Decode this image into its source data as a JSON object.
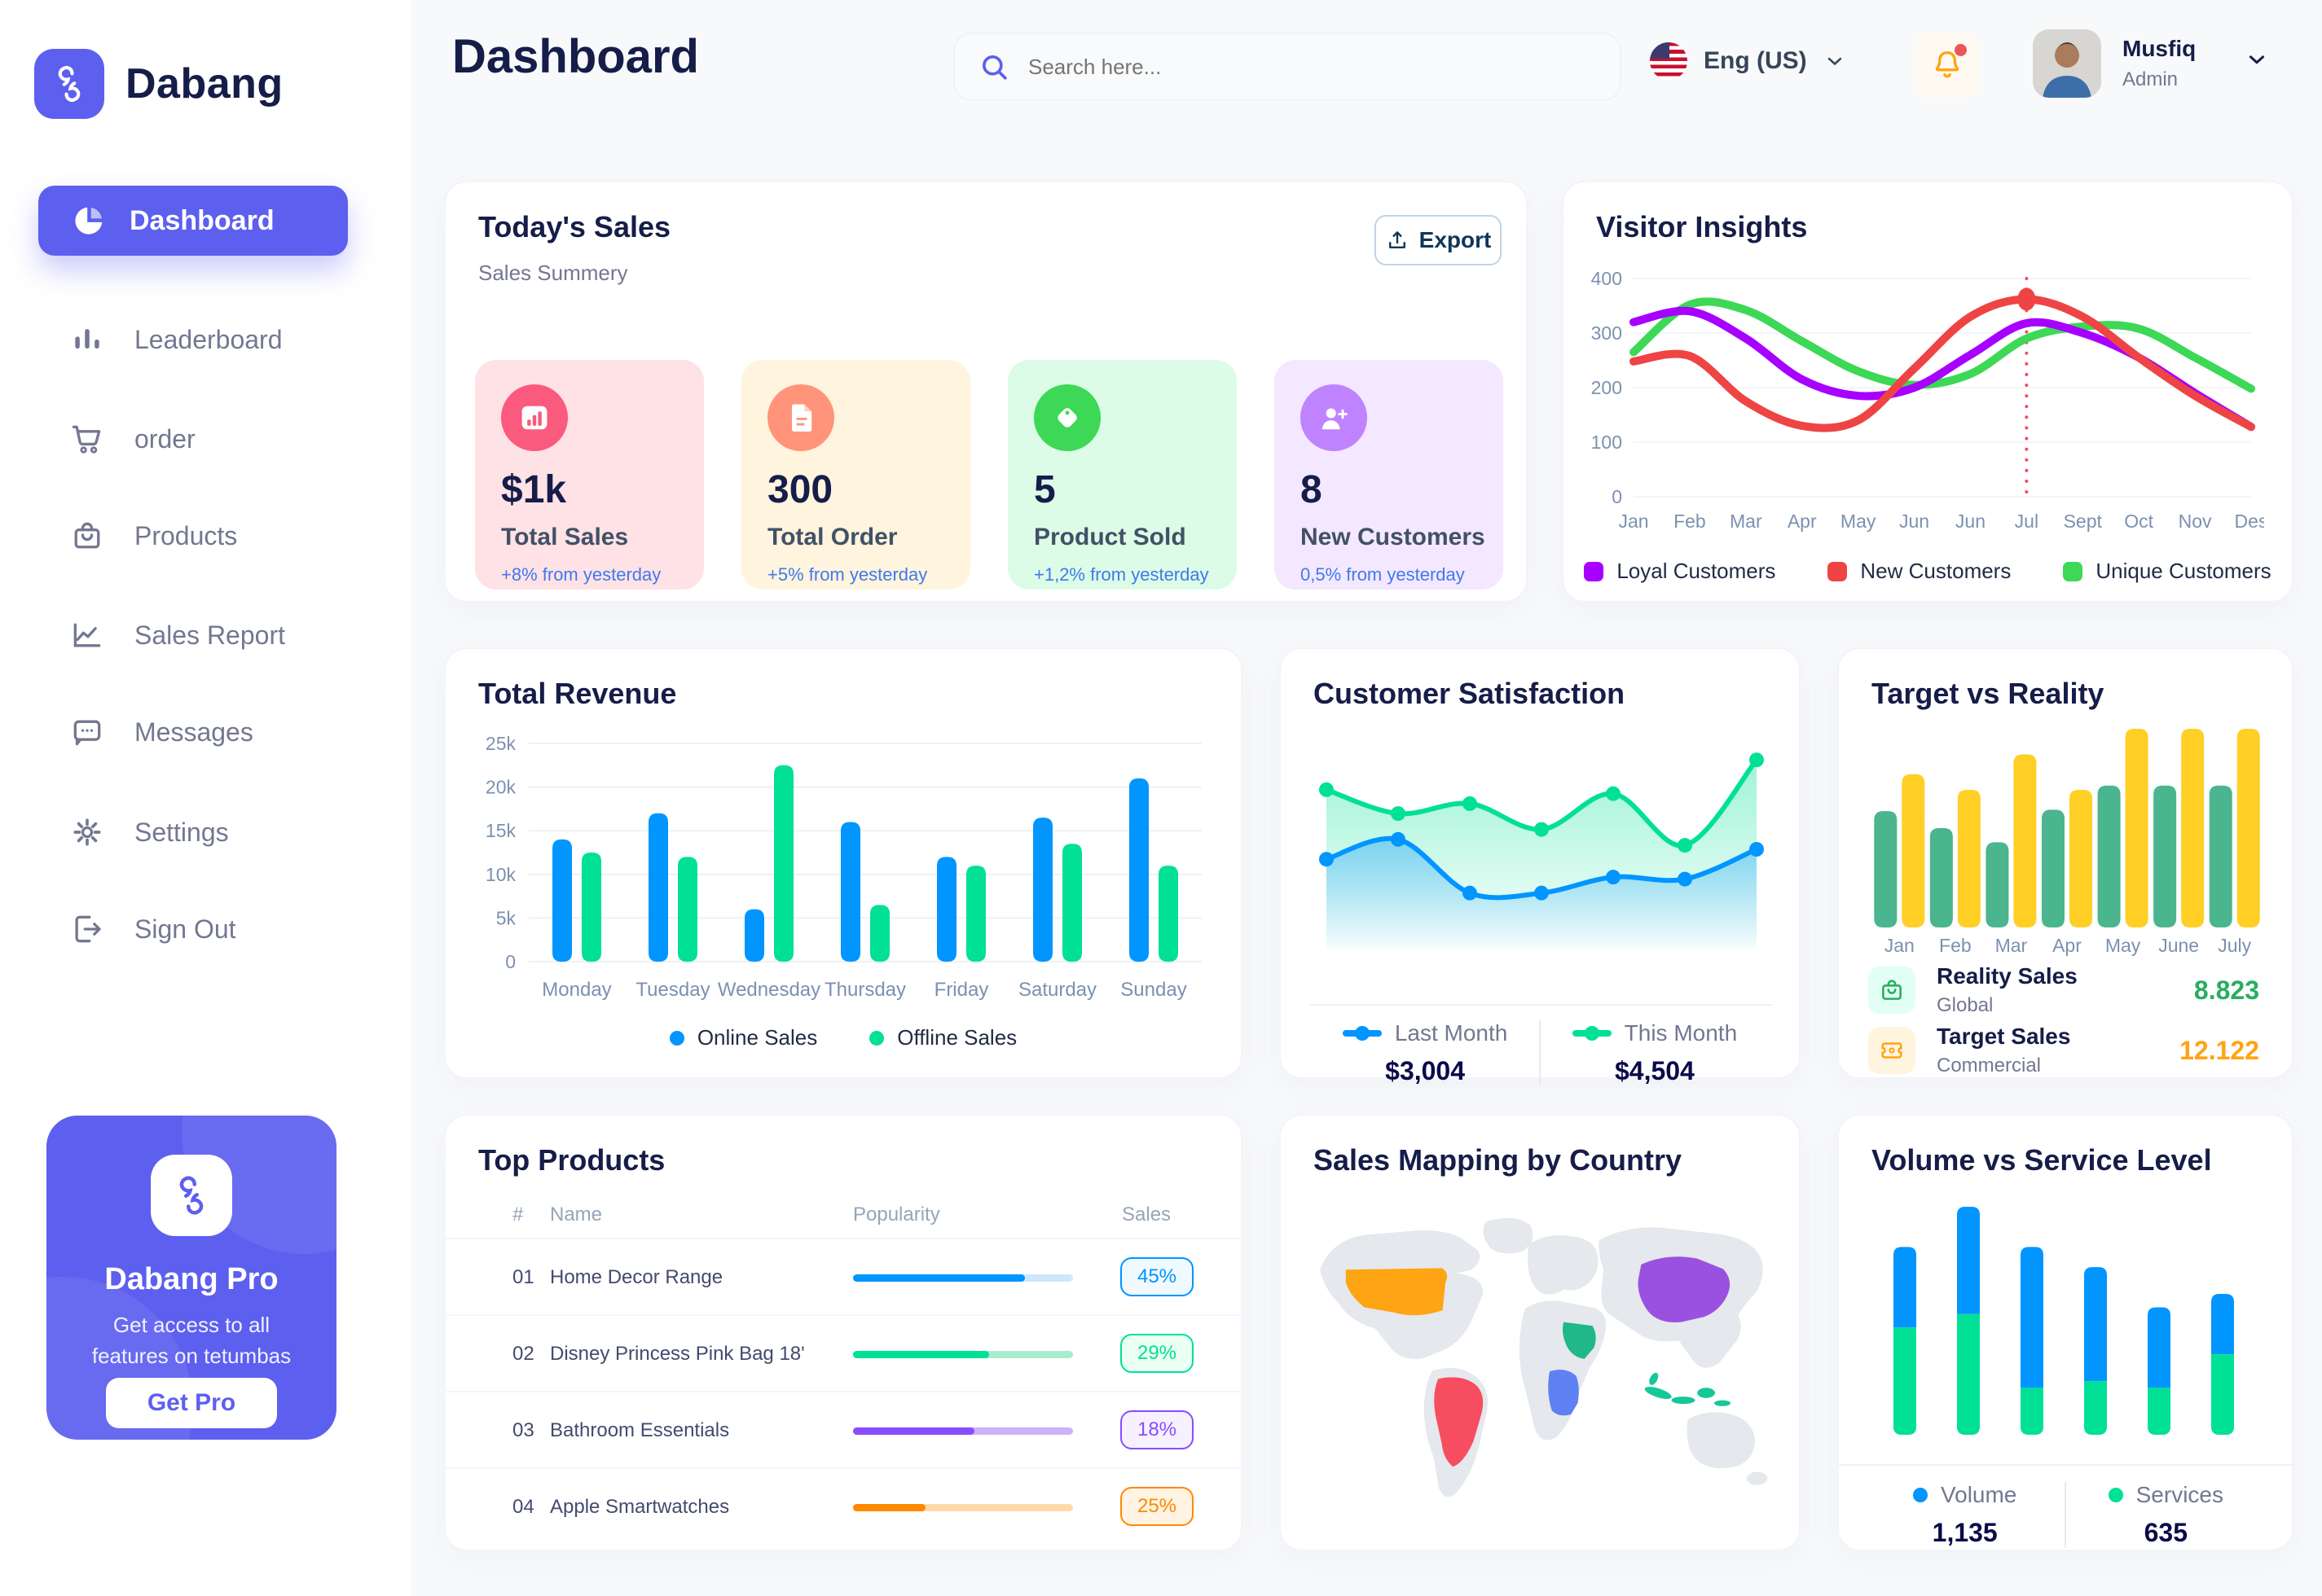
{
  "app": {
    "brand": "Dabang",
    "accent_color": "#5D5FEF"
  },
  "header": {
    "title": "Dashboard",
    "search_placeholder": "Search here...",
    "language": "Eng (US)",
    "user": {
      "name": "Musfiq",
      "role": "Admin"
    }
  },
  "sidebar": {
    "items": [
      {
        "label": "Dashboard",
        "active": true
      },
      {
        "label": "Leaderboard",
        "active": false
      },
      {
        "label": "order",
        "active": false
      },
      {
        "label": "Products",
        "active": false
      },
      {
        "label": "Sales Report",
        "active": false
      },
      {
        "label": "Messages",
        "active": false
      },
      {
        "label": "Settings",
        "active": false
      },
      {
        "label": "Sign Out",
        "active": false
      }
    ],
    "promo": {
      "title": "Dabang Pro",
      "desc_line1": "Get access to all",
      "desc_line2": "features on tetumbas",
      "cta": "Get Pro"
    }
  },
  "todays_sales": {
    "title": "Today's Sales",
    "subtitle": "Sales Summery",
    "export_label": "Export",
    "stats": [
      {
        "value": "$1k",
        "label": "Total Sales",
        "delta": "+8% from yesterday",
        "bg": "#FFE2E5",
        "icon_bg": "#FA5A7D",
        "icon": "bar-chart"
      },
      {
        "value": "300",
        "label": "Total Order",
        "delta": "+5% from yesterday",
        "bg": "#FFF4DE",
        "icon_bg": "#FF947A",
        "icon": "order-file"
      },
      {
        "value": "5",
        "label": "Product Sold",
        "delta": "+1,2% from yesterday",
        "bg": "#DCFCE7",
        "icon_bg": "#3CD856",
        "icon": "price-tag"
      },
      {
        "value": "8",
        "label": "New Customers",
        "delta": "0,5% from yesterday",
        "bg": "#F3E8FF",
        "icon_bg": "#BF83FF",
        "icon": "add-user"
      }
    ]
  },
  "chart_data": [
    {
      "id": "visitor_insights",
      "type": "line",
      "title": "Visitor Insights",
      "categories": [
        "Jan",
        "Feb",
        "Mar",
        "Apr",
        "May",
        "Jun",
        "Jun",
        "Jul",
        "Sept",
        "Oct",
        "Nov",
        "Des"
      ],
      "series": [
        {
          "name": "Loyal Customers",
          "color": "#A700FF",
          "values": [
            320,
            340,
            290,
            215,
            185,
            200,
            260,
            318,
            300,
            255,
            190,
            128
          ]
        },
        {
          "name": "New Customers",
          "color": "#EF4444",
          "values": [
            248,
            258,
            175,
            130,
            140,
            235,
            330,
            362,
            330,
            255,
            185,
            128
          ]
        },
        {
          "name": "Unique Customers",
          "color": "#3CD856",
          "values": [
            265,
            352,
            342,
            285,
            230,
            205,
            225,
            290,
            312,
            308,
            255,
            198
          ]
        }
      ],
      "ylim": [
        0,
        400
      ],
      "yticks": [
        0,
        100,
        200,
        300,
        400
      ],
      "highlight": {
        "category_index": 7,
        "series": "New Customers"
      },
      "legend_position": "bottom",
      "grid": true
    },
    {
      "id": "total_revenue",
      "type": "bar",
      "title": "Total Revenue",
      "categories": [
        "Monday",
        "Tuesday",
        "Wednesday",
        "Thursday",
        "Friday",
        "Saturday",
        "Sunday"
      ],
      "series": [
        {
          "name": "Online Sales",
          "color": "#0095FF",
          "values": [
            14000,
            17000,
            6000,
            16000,
            12000,
            16500,
            21000
          ]
        },
        {
          "name": "Offline Sales",
          "color": "#00E096",
          "values": [
            12500,
            12000,
            22500,
            6500,
            11000,
            13500,
            11000
          ]
        }
      ],
      "ylim": [
        0,
        25000
      ],
      "yticks": [
        0,
        5000,
        10000,
        15000,
        20000,
        25000
      ],
      "ylabels": [
        "0",
        "5k",
        "10k",
        "15k",
        "20k",
        "25k"
      ],
      "legend_position": "bottom",
      "grid": true
    },
    {
      "id": "customer_satisfaction",
      "type": "area",
      "title": "Customer Satisfaction",
      "series": [
        {
          "name": "Last Month",
          "color": "#0095FF",
          "total": "$3,004",
          "values": [
            45,
            55,
            28,
            28,
            36,
            35,
            50
          ]
        },
        {
          "name": "This Month",
          "color": "#00E096",
          "total": "$4,504",
          "values": [
            80,
            68,
            73,
            60,
            78,
            52,
            95
          ]
        }
      ],
      "ylim": [
        0,
        100
      ],
      "legend_position": "bottom",
      "grid": false
    },
    {
      "id": "target_vs_reality",
      "type": "bar",
      "title": "Target vs Reality",
      "categories": [
        "Jan",
        "Feb",
        "Mar",
        "Apr",
        "May",
        "June",
        "July"
      ],
      "series": [
        {
          "name": "Reality Sales",
          "subtitle": "Global",
          "color": "#4AB58E",
          "icon_bg": "#E2FFF3",
          "value_label": "8.823",
          "value_color": "#27AE60",
          "values": [
            8.2,
            7,
            6,
            8.3,
            10,
            10,
            10
          ]
        },
        {
          "name": "Target Sales",
          "subtitle": "Commercial",
          "color": "#FFCF26",
          "icon_bg": "#FFF4DE",
          "value_label": "12.122",
          "value_color": "#FFA412",
          "values": [
            10.8,
            9.7,
            12.2,
            9.7,
            14,
            14,
            14
          ]
        }
      ],
      "ylim": [
        0,
        14
      ],
      "legend_position": "bottom-list",
      "grid": false
    },
    {
      "id": "top_products",
      "type": "table",
      "title": "Top Products",
      "columns": [
        "#",
        "Name",
        "Popularity",
        "Sales"
      ],
      "rows": [
        {
          "rank": "01",
          "name": "Home Decor Range",
          "popularity": 0.78,
          "sales": "45%",
          "color": "#0095FF",
          "track": "#CDE7FF",
          "badge_bg": "#F0F9FF"
        },
        {
          "rank": "02",
          "name": "Disney Princess Pink Bag 18'",
          "popularity": 0.62,
          "sales": "29%",
          "color": "#00E096",
          "track": "#A8EECC",
          "badge_bg": "#EBFFF3"
        },
        {
          "rank": "03",
          "name": "Bathroom Essentials",
          "popularity": 0.55,
          "sales": "18%",
          "color": "#884DFF",
          "track": "#CDB2FA",
          "badge_bg": "#F6F0FF"
        },
        {
          "rank": "04",
          "name": "Apple Smartwatches",
          "popularity": 0.33,
          "sales": "25%",
          "color": "#FF8900",
          "track": "#FFD9A9",
          "badge_bg": "#FFF3E3"
        }
      ]
    },
    {
      "id": "volume_vs_service",
      "type": "stacked-bar",
      "title": "Volume vs Service Level",
      "series": [
        {
          "name": "Volume",
          "color": "#0095FF",
          "total": "1,135",
          "values": [
            6,
            8,
            10.5,
            8.5,
            6,
            4.5
          ]
        },
        {
          "name": "Services",
          "color": "#00E096",
          "total": "635",
          "values": [
            8,
            9,
            3.5,
            4,
            3.5,
            6
          ]
        }
      ],
      "ylim": [
        0,
        17
      ],
      "legend_position": "bottom",
      "grid": false
    }
  ],
  "sales_mapping": {
    "title": "Sales Mapping by Country",
    "countries": [
      {
        "name": "United States",
        "color": "#FFA412"
      },
      {
        "name": "Brazil",
        "color": "#F64E60"
      },
      {
        "name": "China",
        "color": "#9B51E0"
      },
      {
        "name": "Saudi Arabia",
        "color": "#1FB886"
      },
      {
        "name": "DR Congo",
        "color": "#5E81F4"
      },
      {
        "name": "Indonesia",
        "color": "#16C79A"
      }
    ]
  }
}
